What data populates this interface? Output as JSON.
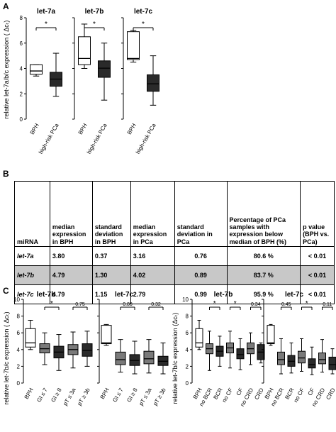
{
  "panels": {
    "A": "A",
    "B": "B",
    "C": "C"
  },
  "panelA": {
    "ylabel": "relative let-7a/b/c expression ( Δcₜ)",
    "yticks": [
      "0",
      "2",
      "4",
      "6",
      "8"
    ],
    "groups": [
      {
        "title": "let-7a",
        "sig": "*",
        "labels": [
          "BPH",
          "high-risk PCa"
        ]
      },
      {
        "title": "let-7b",
        "sig": "*",
        "labels": [
          "BPH",
          "high-risk PCa"
        ]
      },
      {
        "title": "let-7c",
        "sig": "*",
        "labels": [
          "BPH",
          "high-risk PCa"
        ]
      }
    ]
  },
  "table": {
    "headers": [
      "miRNA",
      "median expression in BPH",
      "standard deviation in BPH",
      "median expression in PCa",
      "standard deviation in PCa",
      "Percentage of PCa samples with expression below median of BPH (%)",
      "p value (BPH vs. PCa)"
    ],
    "rows": [
      [
        "let-7a",
        "3.80",
        "0.37",
        "3.16",
        "0.76",
        "80.6 %",
        "< 0.01"
      ],
      [
        "let-7b",
        "4.79",
        "1.30",
        "4.02",
        "0.89",
        "83.7 %",
        "< 0.01"
      ],
      [
        "let-7c",
        "4.79",
        "1.15",
        "2.79",
        "0.99",
        "95.9 %",
        "< 0.01"
      ]
    ]
  },
  "panelC_left": {
    "ylabel": "relative let-7b/c expression ( Δcₜ)",
    "yticks": [
      "0",
      "2",
      "4",
      "6",
      "8",
      "10"
    ],
    "charts": [
      {
        "title": "let-7b",
        "sig": [
          "*",
          "0.75"
        ],
        "labels": [
          "BPH",
          "Gl ≤ 7",
          "Gl ≥ 8",
          "pT ≤ 3a",
          "pT ≥ 3b"
        ]
      },
      {
        "title": "let-7c",
        "sig": [
          "0.88",
          "0.32"
        ],
        "labels": [
          "BPH",
          "Gl ≤ 7",
          "Gl ≥ 8",
          "pT ≤ 3a",
          "pT ≥ 3b"
        ]
      }
    ]
  },
  "panelC_right": {
    "ylabel": "relative let-7b/c  expression  (Δcₜ)",
    "yticks": [
      "0",
      "2",
      "4",
      "6",
      "8",
      "10"
    ],
    "charts": [
      {
        "title": "let-7b",
        "sig": [
          "*",
          "*",
          "0.34"
        ],
        "labels": [
          "BPH",
          "no BCR",
          "BCR",
          "no CF",
          "CF",
          "no CRD",
          "CRD"
        ]
      },
      {
        "title": "let-7c",
        "sig": [
          "0.45",
          "*",
          "0.11"
        ],
        "labels": [
          "BPH",
          "no BCR",
          "BCR",
          "no CF",
          "CF",
          "no CRD",
          "CRD"
        ]
      }
    ]
  },
  "chart_data": [
    {
      "type": "box",
      "ylabel": "relative let-7a/b/c expression ( Δcₜ)",
      "ylim": [
        0,
        8
      ],
      "categories": [
        "let-7a BPH",
        "let-7a high-risk PCa",
        "let-7b BPH",
        "let-7b high-risk PCa",
        "let-7c BPH",
        "let-7c high-risk PCa"
      ],
      "boxes": [
        {
          "fill": "white",
          "min": 3.4,
          "q1": 3.55,
          "median": 3.8,
          "q3": 4.3,
          "max": 4.3
        },
        {
          "fill": "dark",
          "min": 1.8,
          "q1": 2.6,
          "median": 3.16,
          "q3": 3.7,
          "max": 5.2
        },
        {
          "fill": "white",
          "min": 4.0,
          "q1": 4.3,
          "median": 4.79,
          "q3": 6.5,
          "max": 7.5
        },
        {
          "fill": "dark",
          "min": 1.5,
          "q1": 3.3,
          "median": 4.02,
          "q3": 4.6,
          "max": 6.0
        },
        {
          "fill": "white",
          "min": 4.5,
          "q1": 4.7,
          "median": 4.79,
          "q3": 6.9,
          "max": 7.0
        },
        {
          "fill": "dark",
          "min": 1.1,
          "q1": 2.2,
          "median": 2.79,
          "q3": 3.5,
          "max": 5.0
        }
      ]
    },
    {
      "type": "box",
      "title": "let-7b",
      "ylim": [
        0,
        10
      ],
      "categories": [
        "BPH",
        "Gl ≤ 7",
        "Gl ≥ 8",
        "pT ≤ 3a",
        "pT ≥ 3b"
      ],
      "boxes": [
        {
          "fill": "white",
          "min": 4.0,
          "q1": 4.3,
          "median": 4.8,
          "q3": 6.5,
          "max": 7.5
        },
        {
          "fill": "gray",
          "min": 2.2,
          "q1": 3.6,
          "median": 4.1,
          "q3": 4.7,
          "max": 6.0
        },
        {
          "fill": "dark",
          "min": 1.5,
          "q1": 3.0,
          "median": 3.7,
          "q3": 4.4,
          "max": 5.8
        },
        {
          "fill": "gray",
          "min": 1.8,
          "q1": 3.4,
          "median": 4.0,
          "q3": 4.6,
          "max": 6.1
        },
        {
          "fill": "dark",
          "min": 2.0,
          "q1": 3.2,
          "median": 3.9,
          "q3": 4.7,
          "max": 6.2
        }
      ]
    },
    {
      "type": "box",
      "title": "let-7c",
      "ylim": [
        0,
        10
      ],
      "categories": [
        "BPH",
        "Gl ≤ 7",
        "Gl ≥ 8",
        "pT ≤ 3a",
        "pT ≥ 3b"
      ],
      "boxes": [
        {
          "fill": "white",
          "min": 4.5,
          "q1": 4.7,
          "median": 4.8,
          "q3": 6.9,
          "max": 7.0
        },
        {
          "fill": "gray",
          "min": 1.3,
          "q1": 2.2,
          "median": 2.8,
          "q3": 3.7,
          "max": 5.2
        },
        {
          "fill": "dark",
          "min": 1.1,
          "q1": 2.1,
          "median": 2.7,
          "q3": 3.4,
          "max": 5.0
        },
        {
          "fill": "gray",
          "min": 1.2,
          "q1": 2.3,
          "median": 2.9,
          "q3": 3.8,
          "max": 5.2
        },
        {
          "fill": "dark",
          "min": 1.1,
          "q1": 2.1,
          "median": 2.6,
          "q3": 3.2,
          "max": 4.8
        }
      ]
    },
    {
      "type": "box",
      "title": "let-7b",
      "ylim": [
        0,
        10
      ],
      "categories": [
        "BPH",
        "no BCR",
        "BCR",
        "no CF",
        "CF",
        "no CRD",
        "CRD"
      ],
      "boxes": [
        {
          "fill": "white",
          "min": 4.0,
          "q1": 4.3,
          "median": 4.8,
          "q3": 6.5,
          "max": 7.5
        },
        {
          "fill": "gray",
          "min": 1.5,
          "q1": 3.5,
          "median": 4.1,
          "q3": 4.7,
          "max": 6.2
        },
        {
          "fill": "dark",
          "min": 2.0,
          "q1": 3.2,
          "median": 3.8,
          "q3": 4.4,
          "max": 5.6
        },
        {
          "fill": "gray",
          "min": 1.8,
          "q1": 3.6,
          "median": 4.2,
          "q3": 4.8,
          "max": 6.2
        },
        {
          "fill": "dark",
          "min": 1.6,
          "q1": 2.9,
          "median": 3.4,
          "q3": 4.1,
          "max": 5.3
        },
        {
          "fill": "gray",
          "min": 2.2,
          "q1": 3.5,
          "median": 4.1,
          "q3": 4.8,
          "max": 6.0
        },
        {
          "fill": "dark",
          "min": 2.4,
          "q1": 2.8,
          "median": 3.7,
          "q3": 4.6,
          "max": 4.8
        }
      ]
    },
    {
      "type": "box",
      "title": "let-7c",
      "ylim": [
        0,
        10
      ],
      "categories": [
        "BPH",
        "no BCR",
        "BCR",
        "no CF",
        "CF",
        "no CRD",
        "CRD"
      ],
      "boxes": [
        {
          "fill": "white",
          "min": 4.5,
          "q1": 4.7,
          "median": 4.8,
          "q3": 6.9,
          "max": 7.0
        },
        {
          "fill": "gray",
          "min": 1.1,
          "q1": 2.2,
          "median": 2.8,
          "q3": 3.7,
          "max": 5.3
        },
        {
          "fill": "dark",
          "min": 1.2,
          "q1": 2.0,
          "median": 2.6,
          "q3": 3.3,
          "max": 4.8
        },
        {
          "fill": "gray",
          "min": 1.4,
          "q1": 2.4,
          "median": 3.0,
          "q3": 3.8,
          "max": 5.3
        },
        {
          "fill": "dark",
          "min": 1.0,
          "q1": 1.8,
          "median": 2.2,
          "q3": 2.9,
          "max": 4.3
        },
        {
          "fill": "gray",
          "min": 1.3,
          "q1": 2.3,
          "median": 2.8,
          "q3": 3.6,
          "max": 5.2
        },
        {
          "fill": "dark",
          "min": 1.1,
          "q1": 1.6,
          "median": 2.2,
          "q3": 3.1,
          "max": 4.1
        }
      ]
    }
  ],
  "colors": {
    "white": "#ffffff",
    "gray": "#7a7a7a",
    "dark": "#2a2a2a",
    "shade": "#c8c8c8"
  }
}
